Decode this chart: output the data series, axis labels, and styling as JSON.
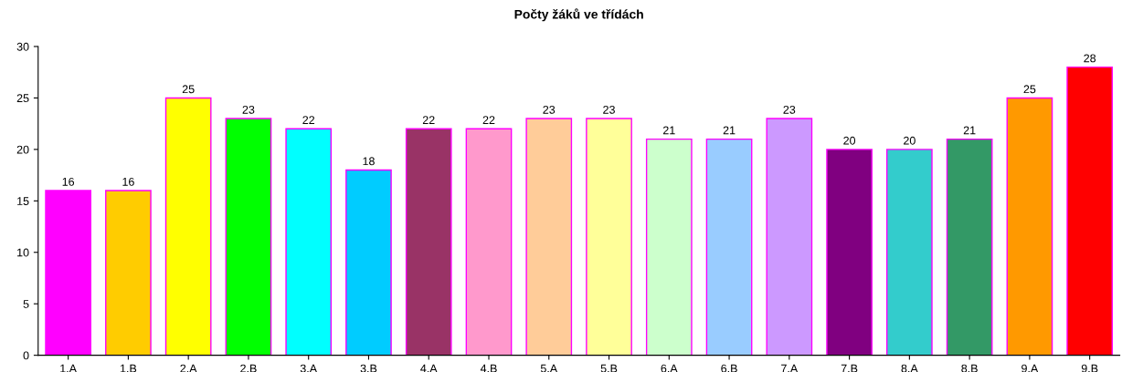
{
  "chart_data": {
    "type": "bar",
    "title": "Počty žáků ve třídách",
    "categories": [
      "1.A",
      "1.B",
      "2.A",
      "2.B",
      "3.A",
      "3.B",
      "4.A",
      "4.B",
      "5.A",
      "5.B",
      "6.A",
      "6.B",
      "7.A",
      "7.B",
      "8.A",
      "8.B",
      "9.A",
      "9.B"
    ],
    "values": [
      16,
      16,
      25,
      23,
      22,
      18,
      22,
      22,
      23,
      23,
      21,
      21,
      23,
      20,
      20,
      21,
      25,
      28
    ],
    "colors": [
      "#ff00ff",
      "#ffcc00",
      "#ffff00",
      "#00ff00",
      "#00ffff",
      "#00ccff",
      "#993366",
      "#ff99cc",
      "#ffcc99",
      "#ffff99",
      "#ccffcc",
      "#99ccff",
      "#cc99ff",
      "#800080",
      "#33cccc",
      "#339966",
      "#ff9900",
      "#ff0000"
    ],
    "ylim": [
      0,
      30
    ],
    "yticks": [
      0,
      5,
      10,
      15,
      20,
      25,
      30
    ],
    "grid": false,
    "data_labels": true
  }
}
